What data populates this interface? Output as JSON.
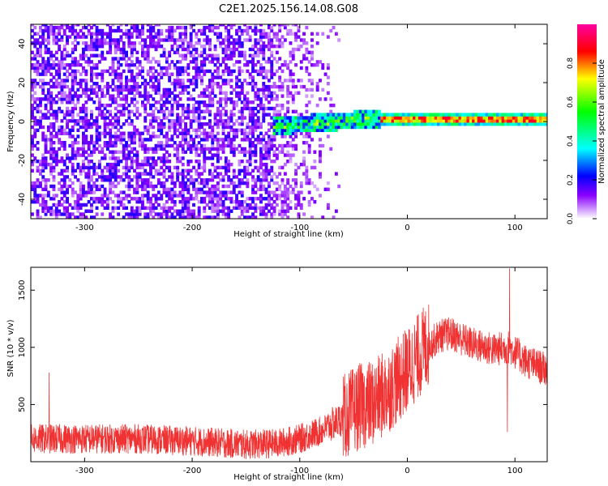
{
  "title": "C2E1.2025.156.14.08.G08",
  "chart_data": [
    {
      "type": "heatmap",
      "xlabel": "Height of straight line (km)",
      "ylabel": "Frequency (Hz)",
      "xlim": [
        -350,
        130
      ],
      "ylim": [
        -50,
        50
      ],
      "x_ticks": [
        -300,
        -200,
        -100,
        0,
        100
      ],
      "y_ticks": [
        -40,
        -20,
        0,
        20,
        40
      ],
      "colorbar": {
        "label": "Normalized spectral amplitude",
        "range": [
          0,
          1
        ],
        "ticks": [
          "0.0",
          "0.2",
          "0.4",
          "0.6",
          "0.8"
        ]
      },
      "regions": [
        {
          "x_range": [
            -350,
            -125
          ],
          "description": "noise",
          "amplitude": 0.1
        },
        {
          "x_range": [
            -125,
            -25
          ],
          "center_freq": 0,
          "amplitude": 0.35
        },
        {
          "x_range": [
            -25,
            130
          ],
          "center_freq": 1,
          "amplitude": 0.8
        }
      ],
      "grid": false
    },
    {
      "type": "line",
      "xlabel": "Height of straight line (km)",
      "ylabel": "SNR (10 * v/v)",
      "xlim": [
        -350,
        130
      ],
      "ylim": [
        0,
        1700
      ],
      "x_ticks": [
        -300,
        -200,
        -100,
        0,
        100
      ],
      "y_ticks": [
        500,
        1000,
        1500
      ],
      "series_color": "#f03232",
      "x": [
        -350,
        -300,
        -250,
        -200,
        -150,
        -120,
        -100,
        -80,
        -60,
        -45,
        -30,
        -15,
        0,
        15,
        30,
        40,
        60,
        80,
        95,
        110,
        130
      ],
      "y": [
        200,
        200,
        200,
        180,
        150,
        160,
        200,
        270,
        380,
        480,
        520,
        650,
        800,
        980,
        1100,
        1120,
        1030,
        980,
        1000,
        880,
        800
      ],
      "spikes": [
        {
          "x": -333,
          "y": 780
        },
        {
          "x": 95,
          "y": 1690
        },
        {
          "x": 93,
          "y": 260
        }
      ],
      "grid": false
    }
  ],
  "colors": {
    "panel_border": "#000000",
    "snr_line": "#f03232"
  }
}
